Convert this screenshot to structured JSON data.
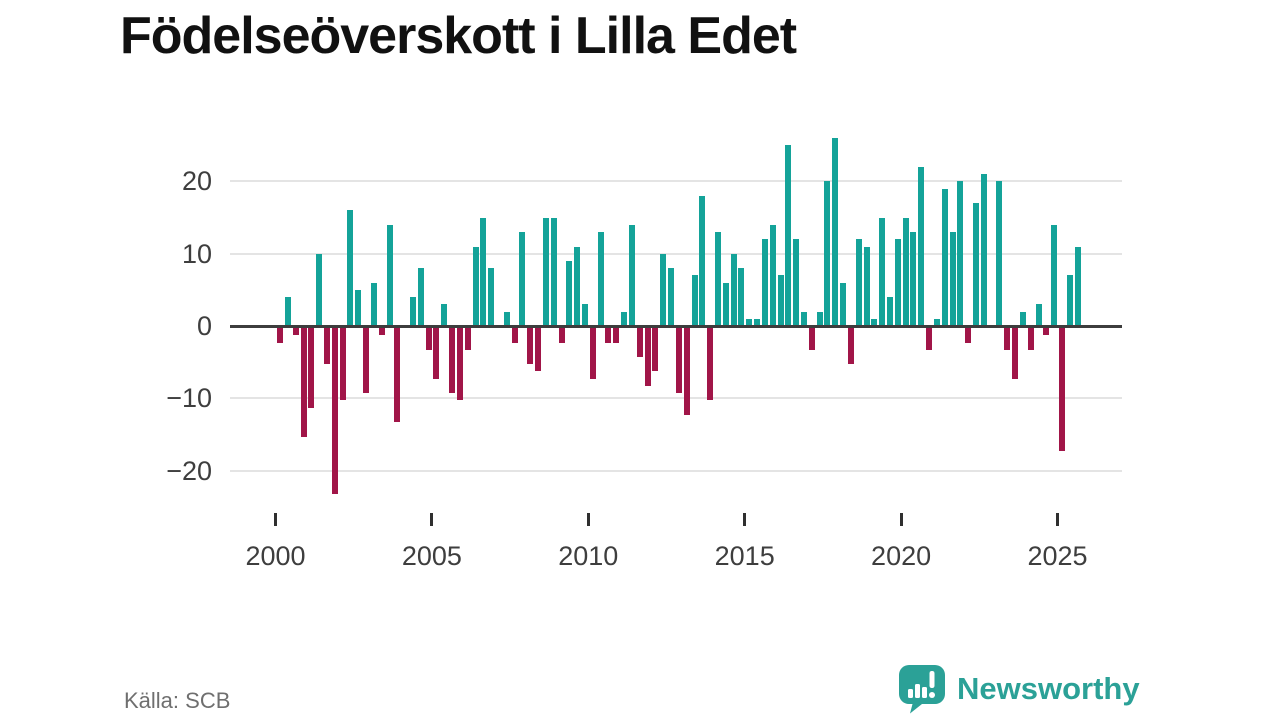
{
  "title": "Födelseöverskott i Lilla Edet",
  "footer": {
    "source": "Källa: SCB"
  },
  "brand": {
    "name": "Newsworthy"
  },
  "colors": {
    "positive": "#14a399",
    "negative": "#a11548",
    "zero_line": "#3d3d3d",
    "gridline": "#e4e4e4",
    "axis_text": "#3e3e3e",
    "title_text": "#111111",
    "source_text": "#6f6f6f",
    "brand_teal": "#2ba197"
  },
  "chart_data": {
    "type": "bar",
    "title": "Födelseöverskott i Lilla Edet",
    "frequency": "quarterly",
    "start": "2000-Q1",
    "end": "2025-Q3",
    "grid": "horizontal",
    "legend": "none",
    "ylim": [
      -25,
      28
    ],
    "y_ticks": [
      {
        "label": "20",
        "value": 20
      },
      {
        "label": "10",
        "value": 10
      },
      {
        "label": "0",
        "value": 0
      },
      {
        "label": "−10",
        "value": -10
      },
      {
        "label": "−20",
        "value": -20
      }
    ],
    "x_ticks": [
      {
        "label": "2000",
        "quarter_index": 0
      },
      {
        "label": "2005",
        "quarter_index": 20
      },
      {
        "label": "2010",
        "quarter_index": 40
      },
      {
        "label": "2015",
        "quarter_index": 60
      },
      {
        "label": "2020",
        "quarter_index": 80
      },
      {
        "label": "2025",
        "quarter_index": 100
      }
    ],
    "series": [
      {
        "name": "Födelseöverskott",
        "values": [
          -2,
          4,
          -1,
          -15,
          -11,
          10,
          -5,
          -23,
          -10,
          16,
          5,
          -9,
          6,
          -1,
          14,
          -13,
          0,
          4,
          8,
          -3,
          -7,
          3,
          -9,
          -10,
          -3,
          11,
          15,
          8,
          0,
          2,
          -2,
          13,
          -5,
          -6,
          15,
          15,
          -2,
          9,
          11,
          3,
          -7,
          13,
          -2,
          -2,
          2,
          14,
          -4,
          -8,
          -6,
          10,
          8,
          -9,
          -12,
          7,
          18,
          -10,
          13,
          6,
          10,
          8,
          1,
          1,
          12,
          14,
          7,
          25,
          12,
          2,
          -3,
          2,
          20,
          26,
          6,
          -5,
          12,
          11,
          1,
          15,
          4,
          12,
          15,
          13,
          22,
          -3,
          1,
          19,
          13,
          20,
          -2,
          17,
          21,
          0,
          20,
          -3,
          -7,
          2,
          -3,
          3,
          -1,
          14,
          -17,
          7,
          11
        ]
      }
    ]
  }
}
